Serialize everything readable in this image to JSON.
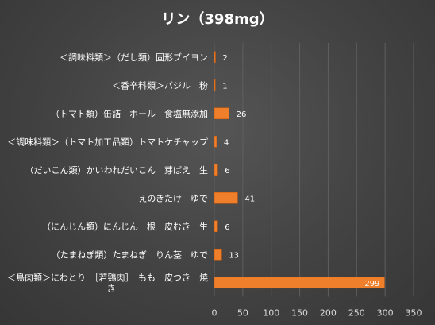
{
  "chart_data": {
    "type": "bar",
    "orientation": "horizontal",
    "title": "リン（398mg）",
    "categories": [
      "＜調味料類＞（だし類）固形ブイヨン",
      "＜香辛料類＞バジル　粉",
      "（トマト類）缶詰　ホール　食塩無添加",
      "＜調味料類＞（トマト加工品類）トマトケチャップ",
      "（だいこん類）かいわれだいこん　芽ばえ　生",
      "えのきたけ　ゆで",
      "（にんじん類）にんじん　根　皮むき　生",
      "（たまねぎ類）たまねぎ　りん茎　ゆで",
      "＜鳥肉類＞にわとり　［若鶏肉］　もも　皮つき　焼き"
    ],
    "values": [
      2,
      1,
      26,
      4,
      6,
      41,
      6,
      13,
      299
    ],
    "data_labels": [
      "2",
      "1",
      "26",
      "4",
      "6",
      "41",
      "6",
      "13",
      "299"
    ],
    "xlim": [
      0,
      350
    ],
    "xticks": [
      "0",
      "50",
      "100",
      "150",
      "200",
      "250",
      "300",
      "350"
    ],
    "grid": true,
    "legend": "none",
    "colors": {
      "bar": "#f07f2b",
      "bar_edge": "#c85c10",
      "text": "#ffffff",
      "tick_text": "#d9d9d9",
      "grid": "#5f5f5f"
    }
  }
}
